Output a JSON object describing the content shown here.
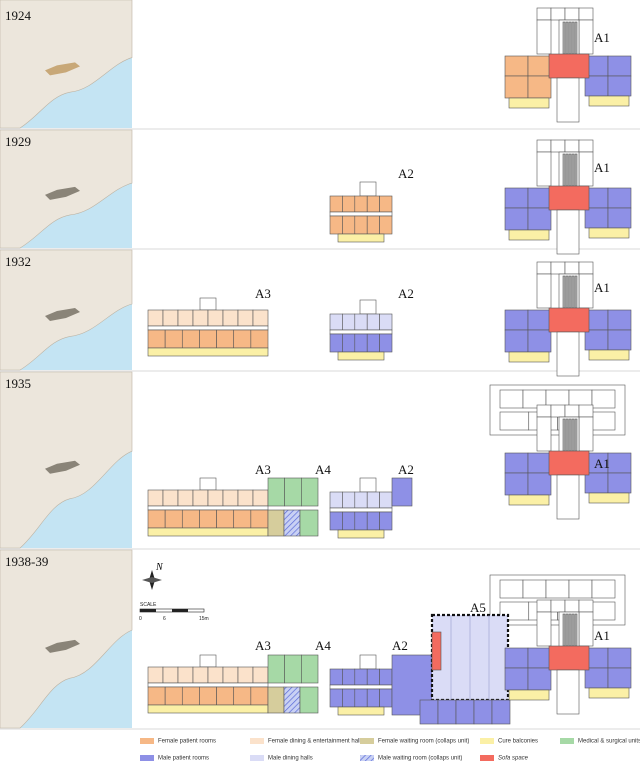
{
  "rows": [
    {
      "year": "1924",
      "labels": [
        "A1"
      ]
    },
    {
      "year": "1929",
      "labels": [
        "A2",
        "A1"
      ]
    },
    {
      "year": "1932",
      "labels": [
        "A3",
        "A2",
        "A1"
      ]
    },
    {
      "year": "1935",
      "labels": [
        "A3",
        "A4",
        "A2",
        "A1"
      ]
    },
    {
      "year": "1938-39",
      "labels": [
        "A3",
        "A4",
        "A2",
        "A5",
        "A1"
      ]
    }
  ],
  "north": "N",
  "scale": {
    "title": "SCALE",
    "ticks": [
      "0",
      "6",
      "15m"
    ]
  },
  "legend": [
    {
      "label": "Female patient rooms",
      "color": "#f6b886"
    },
    {
      "label": "Female dining & entertainment halls",
      "color": "#fbe2cb"
    },
    {
      "label": "Female waiting room (collaps unit)",
      "color": "#d6cd9c"
    },
    {
      "label": "Cure balconies",
      "color": "#fbf0a6"
    },
    {
      "label": "Medical & surgical units",
      "color": "#a6d9a6"
    },
    {
      "label": "Male patient rooms",
      "color": "#8e90e6"
    },
    {
      "label": "Male dining halls",
      "color": "#dadcf6"
    },
    {
      "label": "Male waiting room (collaps unit)",
      "color": "#9aa8e8"
    },
    {
      "label": "Sofa space",
      "color": "#f36b5f"
    }
  ]
}
